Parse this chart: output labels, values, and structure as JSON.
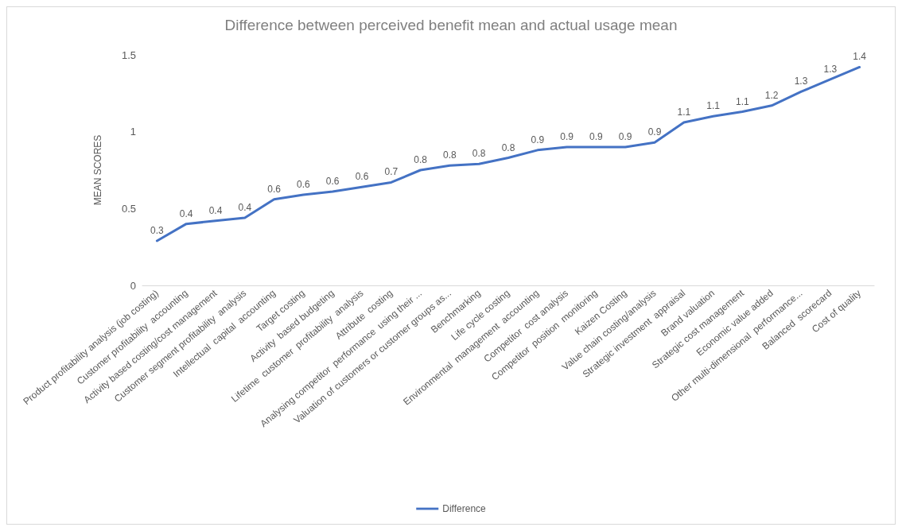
{
  "chart_data": {
    "type": "line",
    "title": "Difference between perceived benefit mean and actual usage mean",
    "ylabel": "MEAN SCORES",
    "categories": [
      "Product profitability analysis (job costing)",
      "Customer profitability  accounting",
      "Activity based costing/cost management",
      "Customer segment profitability  analysis",
      "Intellectual  capital  accounting",
      "Target costing",
      "Activity  based budgeting",
      "Lifetime  customer  profitability  analysis",
      "Attribute  costing",
      "Analysing competitor  performance  using their ...",
      "Valuation of customers or customer groups as...",
      "Benchmarking",
      "Life cycle costing",
      "Environmental  management  accounting",
      "Competitor  cost analysis",
      "Competitor  position  monitoring",
      "Kaizen Costing",
      "Value chain costing/analysis",
      "Strategic investment  appraisal",
      "Brand valuation",
      "Strategic cost management",
      "Economic value added",
      "Other multi-dimensional  performance...",
      "Balanced  scorecard",
      "Cost of quality"
    ],
    "series": [
      {
        "name": "Difference",
        "color": "#4472c4",
        "values": [
          0.29,
          0.4,
          0.42,
          0.44,
          0.56,
          0.59,
          0.61,
          0.64,
          0.67,
          0.75,
          0.78,
          0.79,
          0.83,
          0.88,
          0.9,
          0.9,
          0.9,
          0.93,
          1.06,
          1.1,
          1.13,
          1.17,
          1.26,
          1.34,
          1.42
        ],
        "value_labels": [
          "0.3",
          "0.4",
          "0.4",
          "0.4",
          "0.6",
          "0.6",
          "0.6",
          "0.6",
          "0.7",
          "0.8",
          "0.8",
          "0.8",
          "0.8",
          "0.9",
          "0.9",
          "0.9",
          "0.9",
          "0.9",
          "1.1",
          "1.1",
          "1.1",
          "1.2",
          "1.3",
          "1.3",
          "1.4"
        ]
      }
    ],
    "ylim": [
      0,
      1.5
    ],
    "yticks": [
      0,
      0.5,
      1,
      1.5
    ],
    "grid": false,
    "legend": "bottom",
    "marker": "none",
    "line_style": "solid"
  }
}
